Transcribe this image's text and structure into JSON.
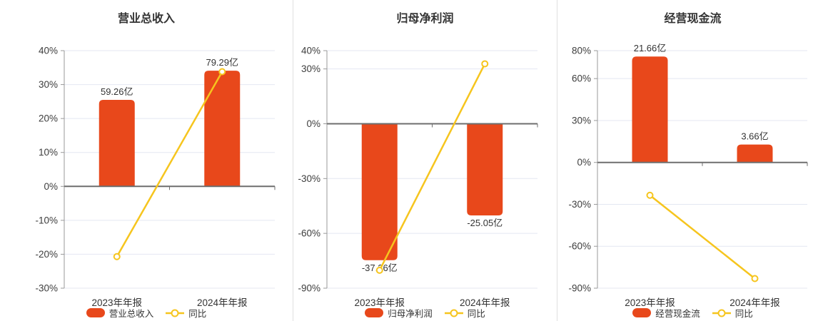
{
  "colors": {
    "bar": "#e8481b",
    "line": "#f6c51e",
    "grid": "#e4e7f2",
    "zero_axis": "#6e6e6e",
    "axis": "#999999",
    "text": "#333333",
    "tick_text": "#3d3d3d",
    "divider": "#e0e0e0",
    "marker_fill": "#ffffff",
    "background": "#ffffff"
  },
  "axis_suffix": "%",
  "chart_data": [
    {
      "type": "bar",
      "title": "营业总收入",
      "categories": [
        "2023年年报",
        "2024年年报"
      ],
      "bar_series": {
        "name": "营业总收入",
        "labels": [
          "59.26亿",
          "79.29亿"
        ],
        "values_yi": [
          59.26,
          79.29
        ],
        "plot_pct": [
          25.5,
          34.1
        ]
      },
      "line_series": {
        "name": "同比",
        "values_pct": [
          -20.7,
          33.8
        ]
      },
      "yticks_pct": [
        40,
        30,
        20,
        10,
        0,
        -10,
        -20,
        -30
      ],
      "ylim_pct": [
        -30,
        40
      ],
      "grid": true,
      "legend_position": "bottom"
    },
    {
      "type": "bar",
      "title": "归母净利润",
      "categories": [
        "2023年年报",
        "2024年年报"
      ],
      "bar_series": {
        "name": "归母净利润",
        "labels": [
          "-37.26亿",
          "-25.05亿"
        ],
        "values_yi": [
          -37.26,
          -25.05
        ],
        "plot_pct": [
          -74.7,
          -50.2
        ]
      },
      "line_series": {
        "name": "同比",
        "values_pct": [
          -80.2,
          32.8
        ]
      },
      "yticks_pct": [
        40,
        30,
        0,
        -30,
        -60,
        -90
      ],
      "ylim_pct": [
        -90,
        40
      ],
      "grid": true,
      "legend_position": "bottom"
    },
    {
      "type": "bar",
      "title": "经营现金流",
      "categories": [
        "2023年年报",
        "2024年年报"
      ],
      "bar_series": {
        "name": "经营现金流",
        "labels": [
          "21.66亿",
          "3.66亿"
        ],
        "values_yi": [
          21.66,
          3.66
        ],
        "plot_pct": [
          75.8,
          12.8
        ]
      },
      "line_series": {
        "name": "同比",
        "values_pct": [
          -23.5,
          -83.1
        ]
      },
      "yticks_pct": [
        80,
        60,
        30,
        0,
        -30,
        -60,
        -90
      ],
      "ylim_pct": [
        -90,
        80
      ],
      "grid": true,
      "legend_position": "bottom"
    }
  ]
}
